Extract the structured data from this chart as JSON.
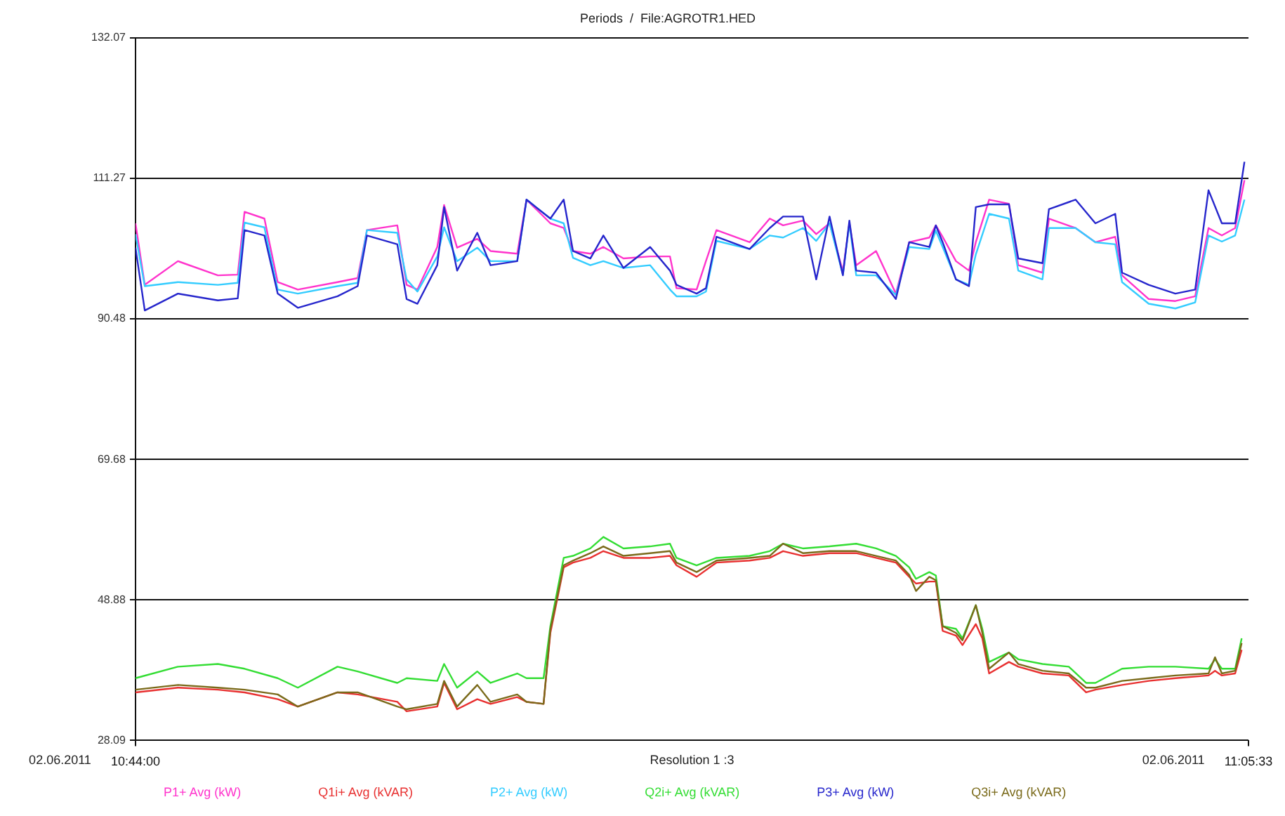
{
  "chart_data": {
    "type": "line",
    "title": "Periods  /  File:AGROTR1.HED",
    "annotations": [
      "Resolution 1 :3",
      "02.06.2011",
      "02.06.2011"
    ],
    "xlim": [
      10.7333,
      11.0925
    ],
    "xticks": [
      {
        "value": 10.7333,
        "label": "10:44:00"
      },
      {
        "value": 11.0925,
        "label": "11:05:33"
      }
    ],
    "ylim": [
      28.09,
      132.07
    ],
    "yticks": [
      28.09,
      48.88,
      69.68,
      90.48,
      111.27,
      132.07
    ],
    "grid": "y",
    "legend": "bottom",
    "series": [
      {
        "name": "P1+ Avg (kW)",
        "color": "#ff33cc",
        "x": [
          10.7333,
          10.7363,
          10.747,
          10.7599,
          10.7663,
          10.7685,
          10.7749,
          10.7792,
          10.7857,
          10.7985,
          10.805,
          10.808,
          10.8178,
          10.8208,
          10.8243,
          10.8307,
          10.8329,
          10.8371,
          10.8436,
          10.8479,
          10.8565,
          10.8595,
          10.8672,
          10.8715,
          10.8745,
          10.8801,
          10.8843,
          10.8908,
          10.8994,
          10.9058,
          10.9079,
          10.9144,
          10.9174,
          10.9208,
          10.9315,
          10.938,
          10.9423,
          10.9487,
          10.953,
          10.9573,
          10.9616,
          10.9637,
          10.9659,
          10.9723,
          10.9787,
          10.983,
          10.9895,
          10.9916,
          10.9938,
          10.9981,
          11.0023,
          11.0045,
          11.0088,
          11.0152,
          11.0182,
          11.026,
          11.0281,
          11.0367,
          11.0431,
          11.0495,
          11.0517,
          11.0603,
          11.0689,
          11.0753,
          11.0796,
          11.0839,
          11.0882,
          11.0912
        ],
        "values": [
          104.6,
          95.5,
          99.0,
          96.9,
          97.0,
          106.3,
          105.3,
          95.9,
          94.8,
          95.9,
          96.5,
          103.6,
          104.3,
          95.5,
          94.8,
          101.1,
          107.3,
          101.0,
          102.3,
          100.5,
          100.1,
          108.1,
          104.6,
          103.9,
          100.5,
          100.1,
          101.1,
          99.4,
          99.7,
          99.7,
          95.0,
          94.8,
          99.0,
          103.6,
          101.8,
          105.3,
          104.3,
          105.0,
          103.0,
          104.6,
          97.5,
          104.6,
          98.4,
          100.5,
          94.2,
          101.8,
          102.5,
          104.3,
          102.6,
          99.0,
          97.6,
          101.8,
          108.1,
          107.5,
          98.4,
          97.3,
          105.3,
          103.9,
          101.8,
          102.6,
          96.9,
          93.4,
          93.1,
          93.8,
          103.9,
          102.8,
          103.9,
          111.0
        ]
      },
      {
        "name": "Q1i+ Avg (kVAR)",
        "color": "#e83030",
        "x": [
          10.7333,
          10.747,
          10.7599,
          10.7685,
          10.7792,
          10.7857,
          10.7985,
          10.805,
          10.8178,
          10.8208,
          10.8307,
          10.8329,
          10.8371,
          10.8436,
          10.8479,
          10.8565,
          10.8595,
          10.865,
          10.8672,
          10.8715,
          10.8745,
          10.8801,
          10.8843,
          10.8908,
          10.8994,
          10.9058,
          10.9079,
          10.9144,
          10.9208,
          10.9315,
          10.938,
          10.9423,
          10.9487,
          10.9573,
          10.9659,
          10.9723,
          10.9787,
          10.983,
          10.9852,
          10.9895,
          10.9916,
          10.9938,
          10.9981,
          11.0002,
          11.0045,
          11.0066,
          11.0088,
          11.0152,
          11.0182,
          11.026,
          11.0345,
          11.0401,
          11.0431,
          11.0517,
          11.0603,
          11.0689,
          11.0796,
          11.0817,
          11.0839,
          11.0882,
          11.0903
        ],
        "values": [
          35.2,
          35.9,
          35.6,
          35.2,
          34.2,
          33.1,
          35.2,
          34.9,
          33.8,
          32.4,
          33.1,
          36.6,
          32.7,
          34.2,
          33.5,
          34.5,
          33.8,
          33.5,
          44.0,
          53.7,
          54.4,
          55.1,
          56.1,
          55.1,
          55.1,
          55.4,
          54.0,
          52.3,
          54.4,
          54.7,
          55.1,
          56.1,
          55.4,
          55.8,
          55.8,
          55.1,
          54.4,
          52.3,
          51.3,
          51.6,
          51.6,
          44.3,
          43.6,
          42.2,
          45.3,
          43.2,
          38.0,
          39.7,
          39.0,
          38.0,
          37.7,
          35.2,
          35.6,
          36.3,
          36.9,
          37.3,
          37.7,
          38.4,
          37.7,
          38.0,
          41.5
        ]
      },
      {
        "name": "P2+ Avg (kW)",
        "color": "#33ccff",
        "x": [
          10.7333,
          10.7363,
          10.747,
          10.7599,
          10.7663,
          10.7685,
          10.7749,
          10.7792,
          10.7857,
          10.7985,
          10.805,
          10.808,
          10.8178,
          10.8208,
          10.8243,
          10.8307,
          10.8329,
          10.8371,
          10.8436,
          10.8479,
          10.8565,
          10.8595,
          10.8672,
          10.8715,
          10.8745,
          10.8801,
          10.8843,
          10.8908,
          10.8994,
          10.9058,
          10.9079,
          10.9144,
          10.9174,
          10.9208,
          10.9315,
          10.938,
          10.9423,
          10.9487,
          10.953,
          10.9573,
          10.9616,
          10.9637,
          10.9659,
          10.9723,
          10.9787,
          10.983,
          10.9895,
          10.9916,
          10.9938,
          10.9981,
          11.0023,
          11.0045,
          11.0088,
          11.0152,
          11.0182,
          11.026,
          11.0281,
          11.0367,
          11.0431,
          11.0495,
          11.0517,
          11.0603,
          11.0689,
          11.0753,
          11.0796,
          11.0839,
          11.0882,
          11.0912
        ],
        "values": [
          103.0,
          95.3,
          95.9,
          95.5,
          95.8,
          104.7,
          104.0,
          94.8,
          94.2,
          95.3,
          95.8,
          103.6,
          103.2,
          96.3,
          94.5,
          99.7,
          104.0,
          99.0,
          101.0,
          99.0,
          99.0,
          108.1,
          105.3,
          104.6,
          99.5,
          98.4,
          99.0,
          98.0,
          98.4,
          94.8,
          93.8,
          93.8,
          94.5,
          102.0,
          100.8,
          102.8,
          102.5,
          103.9,
          102.0,
          104.6,
          97.0,
          104.6,
          96.9,
          96.9,
          94.0,
          101.1,
          100.8,
          103.5,
          101.1,
          96.3,
          95.5,
          100.0,
          106.0,
          105.3,
          97.6,
          96.3,
          103.9,
          103.9,
          101.8,
          101.5,
          95.9,
          92.7,
          92.0,
          92.9,
          102.8,
          101.9,
          102.8,
          108.1
        ]
      },
      {
        "name": "Q2i+ Avg (kVAR)",
        "color": "#33dd33",
        "x": [
          10.7333,
          10.747,
          10.7599,
          10.7685,
          10.7792,
          10.7857,
          10.7985,
          10.805,
          10.8178,
          10.8208,
          10.8307,
          10.8329,
          10.8371,
          10.8436,
          10.8479,
          10.8565,
          10.8595,
          10.865,
          10.8672,
          10.8715,
          10.8745,
          10.8801,
          10.8843,
          10.8908,
          10.8994,
          10.9058,
          10.9079,
          10.9144,
          10.9208,
          10.9315,
          10.938,
          10.9423,
          10.9487,
          10.9573,
          10.9659,
          10.9723,
          10.9787,
          10.983,
          10.9852,
          10.9895,
          10.9916,
          10.9938,
          10.9981,
          11.0002,
          11.0045,
          11.0066,
          11.0088,
          11.0152,
          11.0182,
          11.026,
          11.0345,
          11.0401,
          11.0431,
          11.0517,
          11.0603,
          11.0689,
          11.0796,
          11.0817,
          11.0839,
          11.0882,
          11.0903
        ],
        "values": [
          37.3,
          39.0,
          39.4,
          38.7,
          37.3,
          35.9,
          39.0,
          38.3,
          36.6,
          37.3,
          36.9,
          39.4,
          35.9,
          38.3,
          36.6,
          38.0,
          37.3,
          37.3,
          45.0,
          55.1,
          55.4,
          56.5,
          58.2,
          56.5,
          56.8,
          57.2,
          55.1,
          54.0,
          55.1,
          55.4,
          56.1,
          57.2,
          56.5,
          56.8,
          57.2,
          56.5,
          55.4,
          53.7,
          52.0,
          53.0,
          52.5,
          45.0,
          44.6,
          43.2,
          48.1,
          44.6,
          39.7,
          41.1,
          40.1,
          39.4,
          39.0,
          36.6,
          36.6,
          38.7,
          39.0,
          39.0,
          38.7,
          40.1,
          38.7,
          38.7,
          43.2
        ]
      },
      {
        "name": "P3+ Avg (kW)",
        "color": "#2626cc",
        "x": [
          10.7333,
          10.7363,
          10.747,
          10.7599,
          10.7663,
          10.7685,
          10.7749,
          10.7792,
          10.7857,
          10.7985,
          10.805,
          10.808,
          10.8178,
          10.8208,
          10.8243,
          10.8307,
          10.8329,
          10.8371,
          10.8436,
          10.8479,
          10.8565,
          10.8595,
          10.8672,
          10.8715,
          10.8745,
          10.8801,
          10.8843,
          10.8908,
          10.8994,
          10.9058,
          10.9079,
          10.9144,
          10.9174,
          10.9208,
          10.9315,
          10.938,
          10.9423,
          10.9487,
          10.953,
          10.9573,
          10.9616,
          10.9637,
          10.9659,
          10.9723,
          10.9787,
          10.983,
          10.9895,
          10.9916,
          10.9938,
          10.9981,
          11.0023,
          11.0045,
          11.0088,
          11.0152,
          11.0182,
          11.026,
          11.0281,
          11.0367,
          11.0431,
          11.0495,
          11.0517,
          11.0603,
          11.0689,
          11.0753,
          11.0796,
          11.0839,
          11.0882,
          11.0912
        ],
        "values": [
          101.0,
          91.7,
          94.2,
          93.2,
          93.5,
          103.6,
          102.8,
          94.2,
          92.1,
          93.8,
          95.3,
          102.8,
          101.5,
          93.4,
          92.7,
          98.4,
          107.0,
          97.6,
          103.2,
          98.4,
          99.0,
          108.1,
          105.3,
          108.1,
          100.5,
          99.4,
          102.8,
          98.0,
          101.1,
          97.6,
          95.5,
          94.2,
          95.0,
          102.6,
          100.8,
          103.9,
          105.6,
          105.6,
          96.3,
          105.6,
          96.9,
          105.0,
          97.6,
          97.3,
          93.4,
          101.8,
          101.1,
          104.3,
          101.8,
          96.3,
          95.3,
          107.0,
          107.4,
          107.4,
          99.4,
          98.7,
          106.7,
          108.1,
          104.6,
          106.0,
          97.3,
          95.5,
          94.2,
          94.8,
          109.5,
          104.6,
          104.6,
          113.7
        ]
      },
      {
        "name": "Q3i+ Avg (kVAR)",
        "color": "#7a6a1a",
        "x": [
          10.7333,
          10.747,
          10.7599,
          10.7685,
          10.7792,
          10.7857,
          10.7985,
          10.805,
          10.8178,
          10.8208,
          10.8307,
          10.8329,
          10.8371,
          10.8436,
          10.8479,
          10.8565,
          10.8595,
          10.865,
          10.8672,
          10.8715,
          10.8745,
          10.8801,
          10.8843,
          10.8908,
          10.8994,
          10.9058,
          10.9079,
          10.9144,
          10.9208,
          10.9315,
          10.938,
          10.9423,
          10.9487,
          10.9573,
          10.9659,
          10.9723,
          10.9787,
          10.983,
          10.9852,
          10.9895,
          10.9916,
          10.9938,
          10.9981,
          11.0002,
          11.0045,
          11.0066,
          11.0088,
          11.0152,
          11.0182,
          11.026,
          11.0345,
          11.0401,
          11.0431,
          11.0517,
          11.0603,
          11.0689,
          11.0796,
          11.0817,
          11.0839,
          11.0882,
          11.0903
        ],
        "values": [
          35.6,
          36.3,
          35.9,
          35.6,
          34.9,
          33.1,
          35.2,
          35.2,
          33.1,
          32.7,
          33.5,
          36.9,
          33.1,
          36.3,
          33.8,
          34.9,
          33.8,
          33.5,
          44.5,
          54.0,
          54.7,
          55.8,
          56.8,
          55.4,
          55.8,
          56.1,
          54.4,
          53.0,
          54.7,
          55.1,
          55.4,
          57.2,
          55.8,
          56.1,
          56.1,
          55.4,
          54.7,
          52.6,
          50.2,
          52.3,
          51.8,
          45.0,
          44.0,
          42.9,
          48.1,
          44.0,
          38.7,
          41.1,
          39.4,
          38.4,
          38.0,
          35.9,
          35.9,
          36.9,
          37.3,
          37.7,
          38.0,
          40.4,
          38.0,
          38.4,
          42.5
        ]
      }
    ]
  }
}
